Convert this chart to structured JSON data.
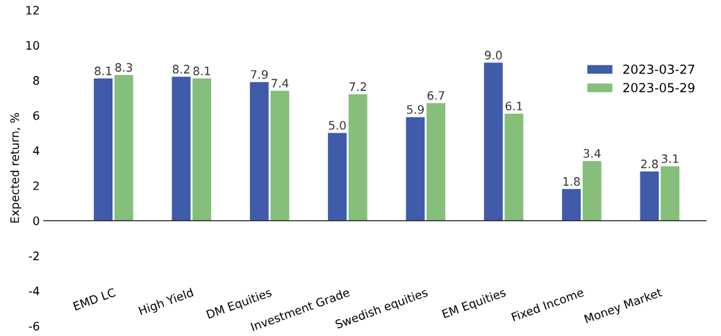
{
  "chart_data": {
    "type": "bar",
    "ylabel": "Expected return, %",
    "categories": [
      "EMD LC",
      "High Yield",
      "DM Equities",
      "Investment Grade",
      "Swedish equities",
      "EM Equities",
      "Fixed Income",
      "Money Market"
    ],
    "series": [
      {
        "name": "2023-03-27",
        "color": "#3f5ba9",
        "values": [
          8.1,
          8.2,
          7.9,
          5,
          5.9,
          9,
          1.8,
          2.8
        ],
        "value_labels": [
          "8.1",
          "8.2",
          "7.9",
          "5.0",
          "5.9",
          "9.0",
          "1.8",
          "2.8"
        ]
      },
      {
        "name": "2023-05-29",
        "color": "#86bf7a",
        "values": [
          8.3,
          8.1,
          7.4,
          7.2,
          6.7,
          6.1,
          3.4,
          3.1
        ],
        "value_labels": [
          "8.3",
          "8.1",
          "7.4",
          "7.2",
          "6.7",
          "6.1",
          "3.4",
          "3.1"
        ]
      }
    ],
    "ylim": [
      -6,
      12
    ],
    "yticks": [
      -6,
      -4,
      -2,
      0,
      2,
      4,
      6,
      8,
      10,
      12
    ],
    "legend": "right"
  }
}
